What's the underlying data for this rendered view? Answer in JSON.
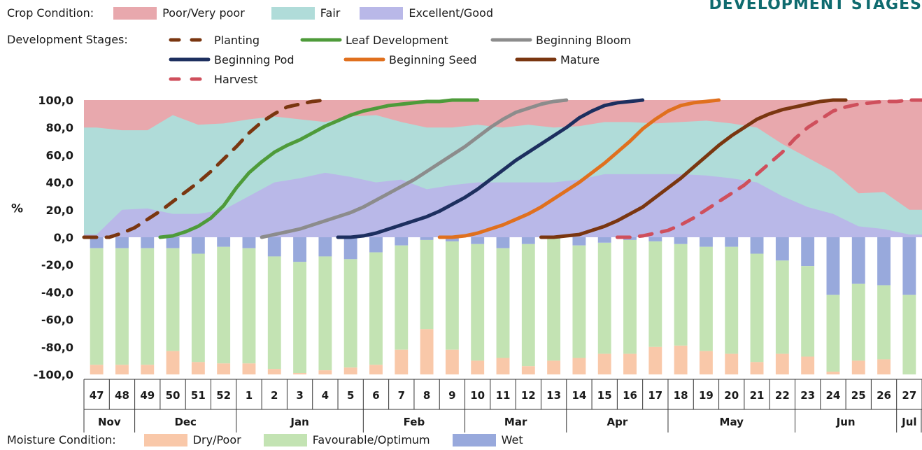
{
  "corner_title": "DEVELOPMENT STAGES",
  "legend": {
    "crop_condition_label": "Crop Condition:",
    "development_stages_label": "Development Stages:",
    "moisture_condition_label": "Moisture Condition:"
  },
  "colors": {
    "poor": "#e8a8ad",
    "fair": "#b0dcd9",
    "excellent": "#b9b8e8",
    "dry": "#f9c8a9",
    "favourable": "#c3e3b3",
    "wet": "#98a9dc",
    "planting": "#7a3610",
    "leaf": "#4e9b3a",
    "bloom": "#8c8c8c",
    "pod": "#1d2f5f",
    "seed": "#e0701e",
    "mature": "#7a3610",
    "harvest": "#cf4f5c"
  },
  "chart_data": {
    "type": "area",
    "ylabel": "%",
    "ylim": [
      -100,
      100
    ],
    "yticks": [
      "100,0",
      "80,0",
      "60,0",
      "40,0",
      "20,0",
      "0,0",
      "-20,0",
      "-40,0",
      "-60,0",
      "-80,0",
      "-100,0"
    ],
    "weeks": [
      "47",
      "48",
      "49",
      "50",
      "51",
      "52",
      "1",
      "2",
      "3",
      "4",
      "5",
      "6",
      "7",
      "8",
      "9",
      "10",
      "11",
      "12",
      "13",
      "14",
      "15",
      "16",
      "17",
      "18",
      "19",
      "20",
      "21",
      "22",
      "23",
      "24",
      "25",
      "26",
      "27"
    ],
    "months": [
      {
        "label": "Nov",
        "start": 0,
        "span": 2
      },
      {
        "label": "Dec",
        "start": 2,
        "span": 4
      },
      {
        "label": "Jan",
        "start": 6,
        "span": 5
      },
      {
        "label": "Feb",
        "start": 11,
        "span": 4
      },
      {
        "label": "Mar",
        "start": 15,
        "span": 4
      },
      {
        "label": "Apr",
        "start": 19,
        "span": 4
      },
      {
        "label": "May",
        "start": 23,
        "span": 5
      },
      {
        "label": "Jun",
        "start": 28,
        "span": 4
      },
      {
        "label": "Jul",
        "start": 32,
        "span": 1
      }
    ],
    "crop_condition": {
      "series_names": [
        "Poor/Very poor",
        "Fair",
        "Excellent/Good"
      ],
      "excellent_good": [
        2,
        20,
        21,
        17,
        17,
        20,
        30,
        40,
        43,
        47,
        44,
        40,
        42,
        35,
        38,
        40,
        40,
        40,
        40,
        42,
        46,
        46,
        46,
        46,
        45,
        43,
        40,
        30,
        22,
        17,
        8,
        6,
        2
      ],
      "fair_upper": [
        80,
        78,
        78,
        89,
        82,
        83,
        86,
        88,
        86,
        84,
        88,
        89,
        84,
        80,
        80,
        82,
        80,
        82,
        80,
        81,
        84,
        84,
        83,
        84,
        85,
        83,
        80,
        68,
        58,
        48,
        32,
        33,
        20
      ]
    },
    "development_stages": [
      {
        "name": "Planting",
        "style": "dashed",
        "x": [
          0,
          0.5,
          1,
          1.5,
          2,
          2.5,
          3,
          3.5,
          4,
          4.5,
          5,
          5.5,
          6,
          6.5,
          7,
          7.5,
          8,
          8.5,
          9,
          9.5
        ],
        "y": [
          0,
          0,
          0,
          3,
          7,
          13,
          19,
          26,
          33,
          40,
          48,
          57,
          66,
          76,
          84,
          90,
          95,
          97,
          99,
          100
        ]
      },
      {
        "name": "Leaf Development",
        "style": "solid",
        "x": [
          3,
          3.5,
          4,
          4.5,
          5,
          5.5,
          6,
          6.5,
          7,
          7.5,
          8,
          8.5,
          9,
          9.5,
          10,
          10.5,
          11,
          11.5,
          12,
          12.5,
          13,
          13.5,
          14,
          14.5,
          15,
          15.5
        ],
        "y": [
          0,
          1,
          4,
          8,
          14,
          23,
          36,
          47,
          55,
          62,
          67,
          71,
          76,
          81,
          85,
          89,
          92,
          94,
          96,
          97,
          98,
          99,
          99,
          100,
          100,
          100
        ]
      },
      {
        "name": "Beginning Bloom",
        "style": "solid",
        "x": [
          7,
          7.5,
          8,
          8.5,
          9,
          9.5,
          10,
          10.5,
          11,
          11.5,
          12,
          12.5,
          13,
          13.5,
          14,
          14.5,
          15,
          15.5,
          16,
          16.5,
          17,
          17.5,
          18,
          18.5,
          19
        ],
        "y": [
          0,
          2,
          4,
          6,
          9,
          12,
          15,
          18,
          22,
          27,
          32,
          37,
          42,
          48,
          54,
          60,
          66,
          73,
          80,
          86,
          91,
          94,
          97,
          99,
          100
        ]
      },
      {
        "name": "Beginning Pod",
        "style": "solid",
        "x": [
          10,
          10.5,
          11,
          11.5,
          12,
          12.5,
          13,
          13.5,
          14,
          14.5,
          15,
          15.5,
          16,
          16.5,
          17,
          17.5,
          18,
          18.5,
          19,
          19.5,
          20,
          20.5,
          21,
          21.5,
          22
        ],
        "y": [
          0,
          0,
          1,
          3,
          6,
          9,
          12,
          15,
          19,
          24,
          29,
          35,
          42,
          49,
          56,
          62,
          68,
          74,
          80,
          87,
          92,
          96,
          98,
          99,
          100
        ]
      },
      {
        "name": "Beginning Seed",
        "style": "solid",
        "x": [
          14,
          14.5,
          15,
          15.5,
          16,
          16.5,
          17,
          17.5,
          18,
          18.5,
          19,
          19.5,
          20,
          20.5,
          21,
          21.5,
          22,
          22.5,
          23,
          23.5,
          24,
          24.5,
          25
        ],
        "y": [
          0,
          0,
          1,
          3,
          6,
          9,
          13,
          17,
          22,
          28,
          34,
          40,
          47,
          54,
          62,
          70,
          79,
          86,
          92,
          96,
          98,
          99,
          100
        ]
      },
      {
        "name": "Mature",
        "style": "solid",
        "x": [
          18,
          18.5,
          19,
          19.5,
          20,
          20.5,
          21,
          21.5,
          22,
          22.5,
          23,
          23.5,
          24,
          24.5,
          25,
          25.5,
          26,
          26.5,
          27,
          27.5,
          28,
          28.5,
          29,
          29.5,
          30
        ],
        "y": [
          0,
          0,
          1,
          2,
          5,
          8,
          12,
          17,
          22,
          29,
          36,
          43,
          51,
          59,
          67,
          74,
          80,
          86,
          90,
          93,
          95,
          97,
          99,
          100,
          100
        ]
      },
      {
        "name": "Harvest",
        "style": "dashed",
        "x": [
          21,
          21.5,
          22,
          22.5,
          23,
          23.5,
          24,
          24.5,
          25,
          25.5,
          26,
          26.5,
          27,
          27.5,
          28,
          28.5,
          29,
          29.5,
          30,
          30.5,
          31,
          31.5,
          32,
          32.5,
          33
        ],
        "y": [
          0,
          0,
          1,
          3,
          5,
          9,
          14,
          20,
          26,
          32,
          38,
          46,
          54,
          62,
          72,
          80,
          86,
          92,
          95,
          97,
          98,
          99,
          99,
          100,
          100
        ]
      }
    ],
    "moisture_condition": {
      "series_names": [
        "Dry/Poor",
        "Favourable/Optimum",
        "Wet"
      ],
      "wet": [
        8,
        8,
        8,
        8,
        12,
        7,
        8,
        14,
        18,
        14,
        16,
        11,
        6,
        2,
        3,
        5,
        8,
        5,
        1,
        6,
        4,
        2,
        3,
        5,
        7,
        7,
        12,
        17,
        21,
        42,
        34,
        35,
        42
      ],
      "dry": [
        7,
        7,
        7,
        17,
        9,
        8,
        8,
        4,
        1,
        3,
        5,
        7,
        18,
        33,
        18,
        10,
        12,
        6,
        10,
        12,
        15,
        15,
        20,
        21,
        17,
        15,
        9,
        15,
        13,
        2,
        10,
        11,
        0
      ]
    }
  }
}
